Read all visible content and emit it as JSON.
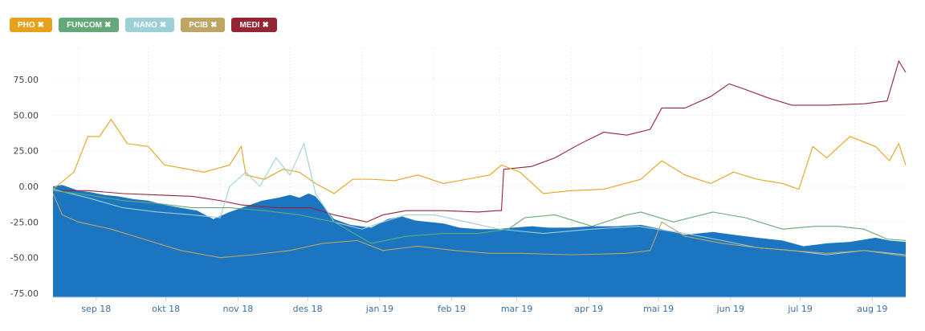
{
  "legend": [
    {
      "label": "PHO",
      "color": "#e6a11d"
    },
    {
      "label": "FUNCOM",
      "color": "#62a977"
    },
    {
      "label": "NANO",
      "color": "#9ccfd6"
    },
    {
      "label": "PCIB",
      "color": "#bfa564"
    },
    {
      "label": "MEDI",
      "color": "#952533"
    }
  ],
  "remove_glyph": "✖",
  "chart_data": {
    "type": "line",
    "x_domain": [
      "2018-08-21",
      "2019-08-23"
    ],
    "ylim": [
      -75,
      90
    ],
    "yticks": [
      "75.00",
      "50.00",
      "25.00",
      "0.00",
      "-25.00",
      "-50.00",
      "-75.00"
    ],
    "ytick_values": [
      75,
      50,
      25,
      0,
      -25,
      -50,
      -75
    ],
    "xticks": [
      {
        "label": "sep 18",
        "date": "2018-09-01"
      },
      {
        "label": "okt 18",
        "date": "2018-10-01"
      },
      {
        "label": "nov 18",
        "date": "2018-11-01"
      },
      {
        "label": "des 18",
        "date": "2018-12-01"
      },
      {
        "label": "jan 19",
        "date": "2019-01-01"
      },
      {
        "label": "feb 19",
        "date": "2019-02-01"
      },
      {
        "label": "mar 19",
        "date": "2019-03-01"
      },
      {
        "label": "apr 19",
        "date": "2019-04-01"
      },
      {
        "label": "mai 19",
        "date": "2019-05-01"
      },
      {
        "label": "jun 19",
        "date": "2019-06-01"
      },
      {
        "label": "jul 19",
        "date": "2019-07-01"
      },
      {
        "label": "aug 19",
        "date": "2019-08-01"
      }
    ],
    "area": {
      "color": "#1b75c0",
      "points": [
        [
          "2018-08-21",
          0
        ],
        [
          "2018-08-25",
          1
        ],
        [
          "2018-09-01",
          -3
        ],
        [
          "2018-09-06",
          -4
        ],
        [
          "2018-09-12",
          -6
        ],
        [
          "2018-09-18",
          -7
        ],
        [
          "2018-09-25",
          -9
        ],
        [
          "2018-10-01",
          -10
        ],
        [
          "2018-10-08",
          -13
        ],
        [
          "2018-10-15",
          -15
        ],
        [
          "2018-10-22",
          -17
        ],
        [
          "2018-10-29",
          -23
        ],
        [
          "2018-11-05",
          -18
        ],
        [
          "2018-11-12",
          -14
        ],
        [
          "2018-11-19",
          -10
        ],
        [
          "2018-11-26",
          -8
        ],
        [
          "2018-12-01",
          -6
        ],
        [
          "2018-12-05",
          -8
        ],
        [
          "2018-12-09",
          -5
        ],
        [
          "2018-12-12",
          -7
        ],
        [
          "2018-12-16",
          -15
        ],
        [
          "2018-12-20",
          -23
        ],
        [
          "2018-12-27",
          -27
        ],
        [
          "2019-01-05",
          -29
        ],
        [
          "2019-01-12",
          -23
        ],
        [
          "2019-01-18",
          -21
        ],
        [
          "2019-01-24",
          -24
        ],
        [
          "2019-01-30",
          -25
        ],
        [
          "2019-02-05",
          -26
        ],
        [
          "2019-02-12",
          -29
        ],
        [
          "2019-02-20",
          -30
        ],
        [
          "2019-02-28",
          -30
        ],
        [
          "2019-03-07",
          -29
        ],
        [
          "2019-03-15",
          -28
        ],
        [
          "2019-03-22",
          -29
        ],
        [
          "2019-03-31",
          -29
        ],
        [
          "2019-04-10",
          -28
        ],
        [
          "2019-04-20",
          -28
        ],
        [
          "2019-05-01",
          -27
        ],
        [
          "2019-05-10",
          -30
        ],
        [
          "2019-05-20",
          -34
        ],
        [
          "2019-06-01",
          -32
        ],
        [
          "2019-06-10",
          -34
        ],
        [
          "2019-06-20",
          -36
        ],
        [
          "2019-07-01",
          -38
        ],
        [
          "2019-07-10",
          -42
        ],
        [
          "2019-07-20",
          -40
        ],
        [
          "2019-07-30",
          -39
        ],
        [
          "2019-08-10",
          -36
        ],
        [
          "2019-08-16",
          -38
        ],
        [
          "2019-08-23",
          -39
        ]
      ]
    },
    "series": [
      {
        "name": "MEDI",
        "color": "#952533",
        "points": [
          [
            "2018-08-21",
            -3
          ],
          [
            "2018-09-05",
            -3
          ],
          [
            "2018-09-20",
            -5
          ],
          [
            "2018-10-05",
            -6
          ],
          [
            "2018-10-20",
            -7
          ],
          [
            "2018-11-01",
            -10
          ],
          [
            "2018-11-10",
            -13
          ],
          [
            "2018-11-25",
            -15
          ],
          [
            "2018-12-10",
            -15
          ],
          [
            "2018-12-20",
            -20
          ],
          [
            "2019-01-03",
            -25
          ],
          [
            "2019-01-10",
            -20
          ],
          [
            "2019-01-20",
            -17
          ],
          [
            "2019-02-05",
            -17
          ],
          [
            "2019-02-20",
            -18
          ],
          [
            "2019-02-28",
            -17
          ],
          [
            "2019-03-02",
            -17
          ],
          [
            "2019-03-03",
            12
          ],
          [
            "2019-03-15",
            14
          ],
          [
            "2019-03-25",
            20
          ],
          [
            "2019-04-05",
            30
          ],
          [
            "2019-04-15",
            38
          ],
          [
            "2019-04-25",
            36
          ],
          [
            "2019-05-05",
            40
          ],
          [
            "2019-05-10",
            55
          ],
          [
            "2019-05-20",
            55
          ],
          [
            "2019-05-31",
            63
          ],
          [
            "2019-06-08",
            72
          ],
          [
            "2019-06-15",
            68
          ],
          [
            "2019-06-25",
            62
          ],
          [
            "2019-07-05",
            57
          ],
          [
            "2019-07-20",
            57
          ],
          [
            "2019-08-05",
            58
          ],
          [
            "2019-08-15",
            60
          ],
          [
            "2019-08-20",
            88
          ],
          [
            "2019-08-23",
            80
          ]
        ]
      },
      {
        "name": "PHO",
        "color": "#e6a11d",
        "points": [
          [
            "2018-08-21",
            -2
          ],
          [
            "2018-08-30",
            10
          ],
          [
            "2018-09-05",
            35
          ],
          [
            "2018-09-10",
            35
          ],
          [
            "2018-09-15",
            47
          ],
          [
            "2018-09-22",
            30
          ],
          [
            "2018-10-01",
            28
          ],
          [
            "2018-10-08",
            15
          ],
          [
            "2018-10-15",
            13
          ],
          [
            "2018-10-25",
            10
          ],
          [
            "2018-11-05",
            15
          ],
          [
            "2018-11-10",
            28
          ],
          [
            "2018-11-12",
            8
          ],
          [
            "2018-11-20",
            5
          ],
          [
            "2018-11-28",
            12
          ],
          [
            "2018-12-05",
            10
          ],
          [
            "2018-12-12",
            2
          ],
          [
            "2018-12-20",
            -5
          ],
          [
            "2018-12-28",
            5
          ],
          [
            "2019-01-05",
            5
          ],
          [
            "2019-01-15",
            4
          ],
          [
            "2019-01-25",
            8
          ],
          [
            "2019-02-05",
            2
          ],
          [
            "2019-02-15",
            5
          ],
          [
            "2019-02-25",
            8
          ],
          [
            "2019-03-02",
            15
          ],
          [
            "2019-03-10",
            10
          ],
          [
            "2019-03-20",
            -5
          ],
          [
            "2019-04-01",
            -3
          ],
          [
            "2019-04-15",
            -2
          ],
          [
            "2019-05-01",
            5
          ],
          [
            "2019-05-10",
            18
          ],
          [
            "2019-05-20",
            8
          ],
          [
            "2019-05-31",
            2
          ],
          [
            "2019-06-10",
            10
          ],
          [
            "2019-06-20",
            5
          ],
          [
            "2019-07-01",
            2
          ],
          [
            "2019-07-08",
            -2
          ],
          [
            "2019-07-14",
            28
          ],
          [
            "2019-07-20",
            20
          ],
          [
            "2019-07-30",
            35
          ],
          [
            "2019-08-10",
            28
          ],
          [
            "2019-08-16",
            18
          ],
          [
            "2019-08-20",
            30
          ],
          [
            "2019-08-23",
            15
          ]
        ]
      },
      {
        "name": "NANO",
        "color": "#9ccfd6",
        "points": [
          [
            "2018-08-21",
            -2
          ],
          [
            "2018-09-05",
            -8
          ],
          [
            "2018-09-20",
            -15
          ],
          [
            "2018-10-05",
            -18
          ],
          [
            "2018-10-20",
            -20
          ],
          [
            "2018-11-01",
            -22
          ],
          [
            "2018-11-05",
            0
          ],
          [
            "2018-11-12",
            10
          ],
          [
            "2018-11-18",
            0
          ],
          [
            "2018-11-25",
            20
          ],
          [
            "2018-12-01",
            8
          ],
          [
            "2018-12-07",
            30
          ],
          [
            "2018-12-12",
            -5
          ],
          [
            "2018-12-20",
            -25
          ],
          [
            "2019-01-01",
            -30
          ],
          [
            "2019-01-10",
            -25
          ],
          [
            "2019-01-20",
            -20
          ],
          [
            "2019-02-01",
            -20
          ],
          [
            "2019-02-15",
            -25
          ],
          [
            "2019-03-01",
            -30
          ],
          [
            "2019-03-20",
            -33
          ],
          [
            "2019-04-10",
            -30
          ],
          [
            "2019-04-30",
            -28
          ],
          [
            "2019-05-20",
            -33
          ],
          [
            "2019-06-05",
            -38
          ],
          [
            "2019-06-20",
            -43
          ],
          [
            "2019-07-05",
            -45
          ],
          [
            "2019-07-20",
            -48
          ],
          [
            "2019-08-05",
            -45
          ],
          [
            "2019-08-23",
            -48
          ]
        ]
      },
      {
        "name": "FUNCOM",
        "color": "#62a977",
        "points": [
          [
            "2018-08-21",
            -3
          ],
          [
            "2018-09-05",
            -6
          ],
          [
            "2018-09-20",
            -10
          ],
          [
            "2018-10-05",
            -12
          ],
          [
            "2018-10-20",
            -15
          ],
          [
            "2018-11-05",
            -15
          ],
          [
            "2018-11-20",
            -17
          ],
          [
            "2018-12-05",
            -20
          ],
          [
            "2018-12-20",
            -25
          ],
          [
            "2019-01-05",
            -40
          ],
          [
            "2019-01-20",
            -35
          ],
          [
            "2019-02-05",
            -33
          ],
          [
            "2019-02-20",
            -33
          ],
          [
            "2019-03-05",
            -30
          ],
          [
            "2019-03-12",
            -22
          ],
          [
            "2019-03-25",
            -20
          ],
          [
            "2019-04-10",
            -28
          ],
          [
            "2019-04-25",
            -20
          ],
          [
            "2019-05-01",
            -18
          ],
          [
            "2019-05-15",
            -25
          ],
          [
            "2019-06-01",
            -18
          ],
          [
            "2019-06-15",
            -22
          ],
          [
            "2019-07-01",
            -30
          ],
          [
            "2019-07-15",
            -28
          ],
          [
            "2019-07-25",
            -28
          ],
          [
            "2019-08-05",
            -30
          ],
          [
            "2019-08-15",
            -37
          ],
          [
            "2019-08-23",
            -38
          ]
        ]
      },
      {
        "name": "PCIB",
        "color": "#bfa564",
        "points": [
          [
            "2018-08-21",
            -5
          ],
          [
            "2018-08-25",
            -20
          ],
          [
            "2018-09-01",
            -25
          ],
          [
            "2018-09-15",
            -30
          ],
          [
            "2018-10-01",
            -38
          ],
          [
            "2018-10-15",
            -45
          ],
          [
            "2018-11-01",
            -50
          ],
          [
            "2018-11-15",
            -48
          ],
          [
            "2018-12-01",
            -45
          ],
          [
            "2018-12-15",
            -40
          ],
          [
            "2018-12-30",
            -38
          ],
          [
            "2019-01-10",
            -45
          ],
          [
            "2019-01-25",
            -42
          ],
          [
            "2019-02-10",
            -45
          ],
          [
            "2019-02-25",
            -47
          ],
          [
            "2019-03-10",
            -47
          ],
          [
            "2019-04-01",
            -48
          ],
          [
            "2019-04-25",
            -47
          ],
          [
            "2019-05-05",
            -45
          ],
          [
            "2019-05-10",
            -25
          ],
          [
            "2019-05-20",
            -35
          ],
          [
            "2019-06-05",
            -40
          ],
          [
            "2019-06-20",
            -43
          ],
          [
            "2019-07-05",
            -45
          ],
          [
            "2019-07-20",
            -47
          ],
          [
            "2019-08-05",
            -45
          ],
          [
            "2019-08-23",
            -49
          ]
        ]
      }
    ]
  }
}
